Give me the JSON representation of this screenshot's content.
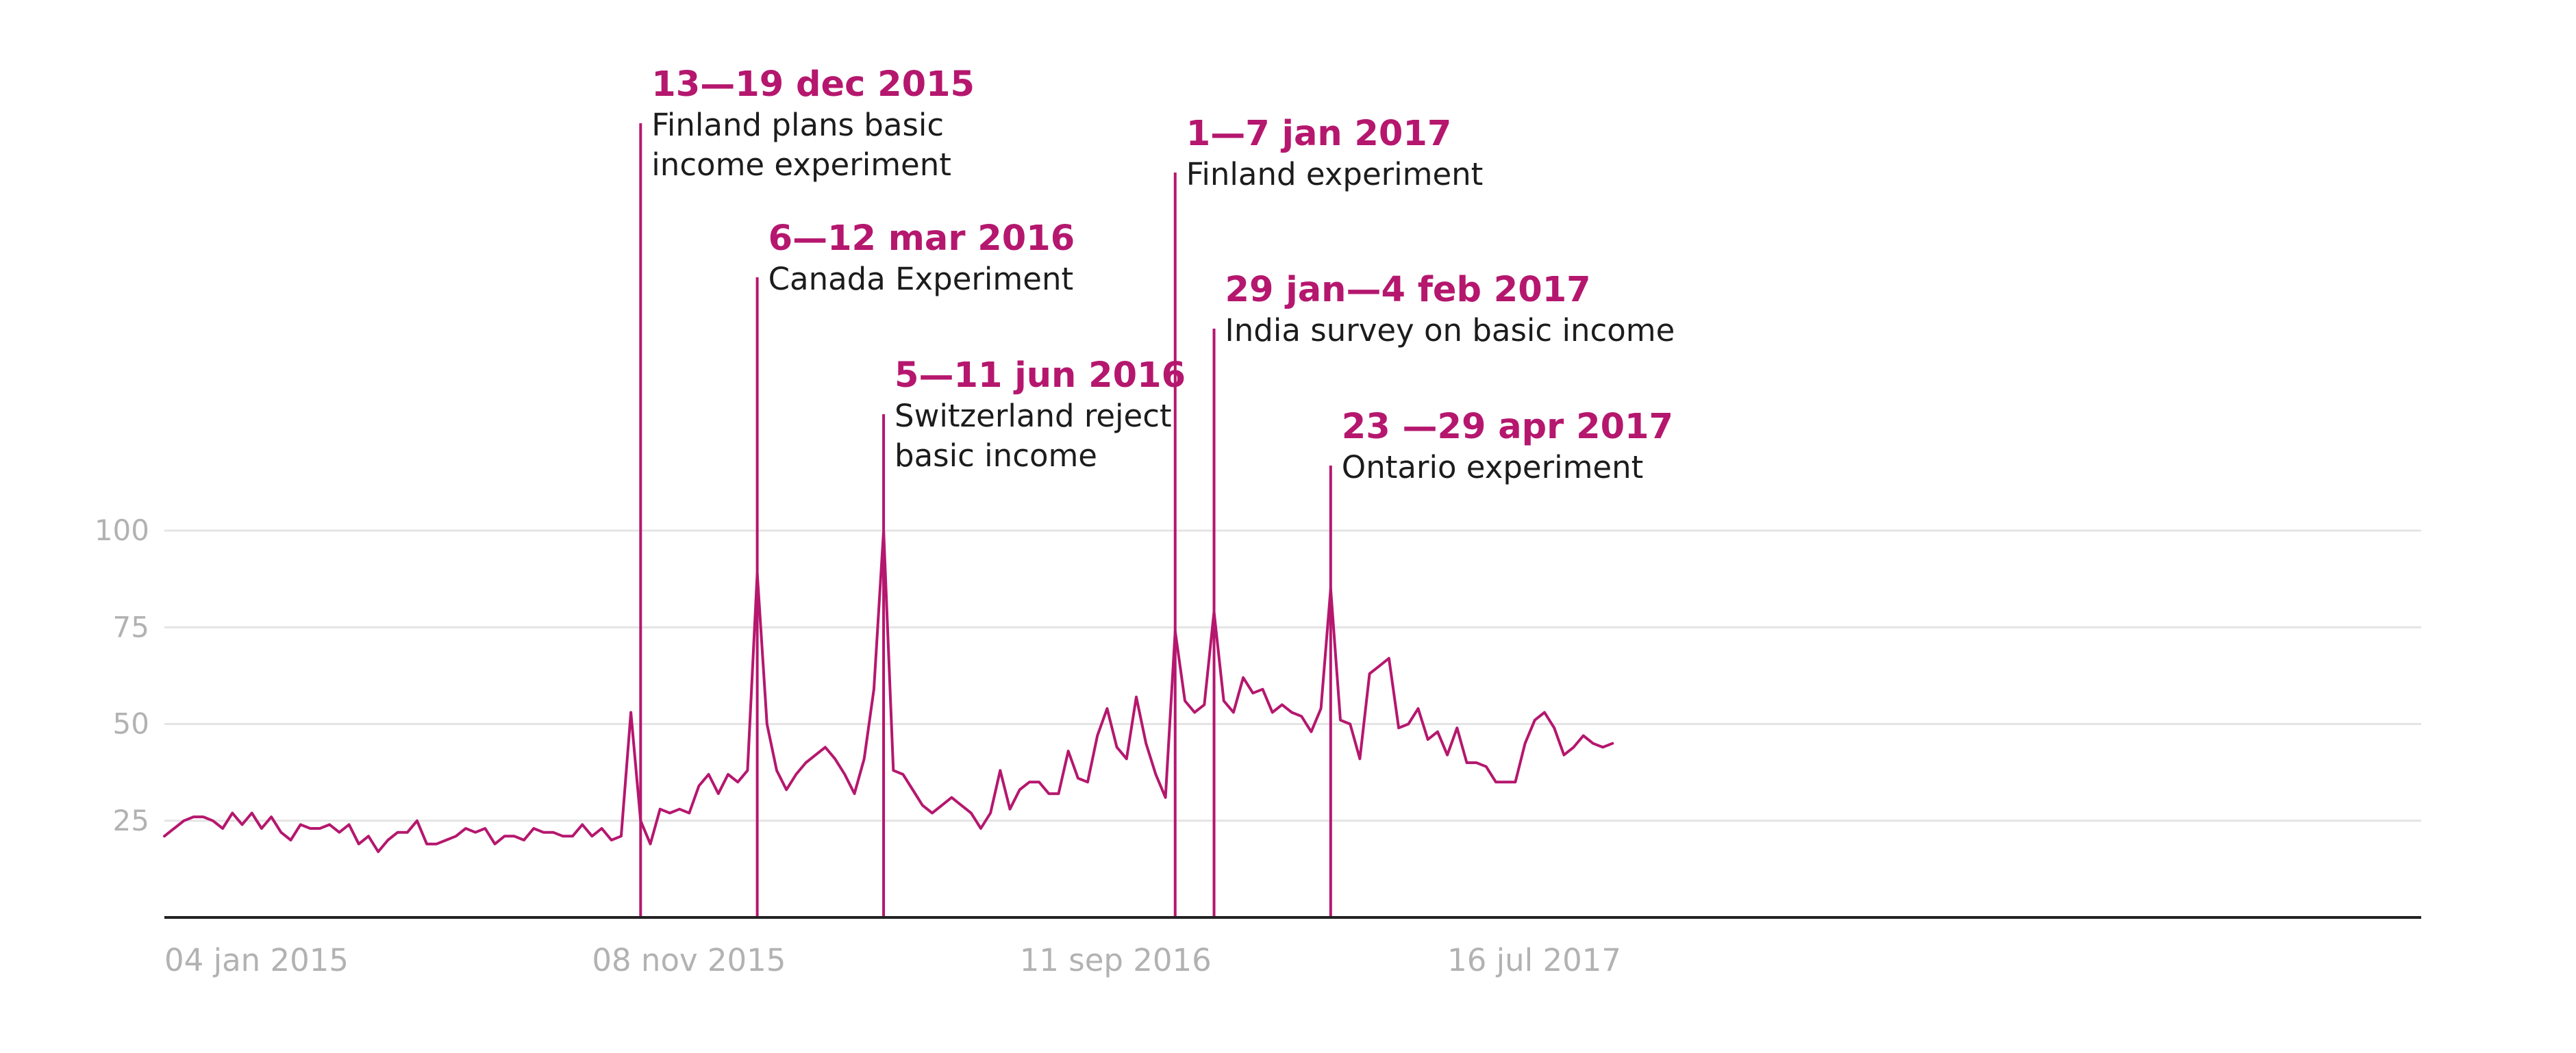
{
  "colors": {
    "line": "#b5176e",
    "annotation_title": "#b5176e",
    "annotation_text": "#1c1c1c",
    "grid": "#e4e4e4",
    "axis": "#222222",
    "tick_label": "#b2b2b2"
  },
  "chart_data": {
    "type": "line",
    "title": "",
    "xlabel": "",
    "ylabel": "",
    "ylim": [
      0,
      100
    ],
    "y_ticks": [
      25,
      50,
      75,
      100
    ],
    "x_ticks": [
      {
        "date": "2015-01-04",
        "label": "04 jan 2015"
      },
      {
        "date": "2015-11-08",
        "label": "08 nov 2015"
      },
      {
        "date": "2016-09-11",
        "label": "11 sep 2016"
      },
      {
        "date": "2017-07-16",
        "label": "16 jul 2017"
      }
    ],
    "x_start": "2015-01-04",
    "grid": true,
    "legend": "none",
    "series": [
      {
        "values": [
          21,
          23,
          25,
          26,
          26,
          25,
          23,
          27,
          24,
          27,
          23,
          26,
          22,
          20,
          24,
          23,
          23,
          24,
          22,
          24,
          19,
          21,
          17,
          20,
          22,
          22,
          25,
          19,
          19,
          20,
          21,
          23,
          22,
          23,
          19,
          21,
          21,
          20,
          23,
          22,
          22,
          21,
          21,
          24,
          21,
          23,
          20,
          21,
          53,
          25,
          19,
          28,
          27,
          28,
          27,
          34,
          37,
          32,
          37,
          35,
          38,
          89,
          50,
          38,
          33,
          37,
          40,
          42,
          44,
          41,
          37,
          32,
          41,
          59,
          100,
          38,
          37,
          33,
          29,
          27,
          29,
          31,
          29,
          27,
          23,
          27,
          38,
          28,
          33,
          35,
          35,
          32,
          32,
          43,
          36,
          35,
          47,
          54,
          44,
          41,
          57,
          45,
          37,
          31,
          74,
          56,
          53,
          55,
          79,
          56,
          53,
          62,
          58,
          59,
          53,
          55,
          53,
          52,
          48,
          54,
          85,
          51,
          50,
          41,
          63,
          65,
          67,
          49,
          50,
          54,
          46,
          48,
          42,
          49,
          40,
          40,
          39,
          35,
          35,
          35,
          45,
          51,
          53,
          49,
          42,
          44,
          47,
          45,
          44,
          45
        ]
      }
    ],
    "annotations": [
      {
        "date": "2015-12-13",
        "label": "13—19 dec 2015",
        "text_lines": [
          "Finland plans basic",
          "income experiment"
        ]
      },
      {
        "date": "2016-03-06",
        "label": "6—12 mar 2016",
        "text_lines": [
          "Canada Experiment"
        ]
      },
      {
        "date": "2016-06-05",
        "label": "5—11 jun 2016",
        "text_lines": [
          "Switzerland reject",
          "basic income"
        ]
      },
      {
        "date": "2017-01-01",
        "label": "1—7 jan 2017",
        "text_lines": [
          "Finland experiment"
        ]
      },
      {
        "date": "2017-01-29",
        "label": "29  jan—4 feb 2017",
        "text_lines": [
          "India survey on basic income"
        ]
      },
      {
        "date": "2017-04-23",
        "label": "23 —29 apr 2017",
        "text_lines": [
          "Ontario experiment"
        ]
      }
    ]
  }
}
